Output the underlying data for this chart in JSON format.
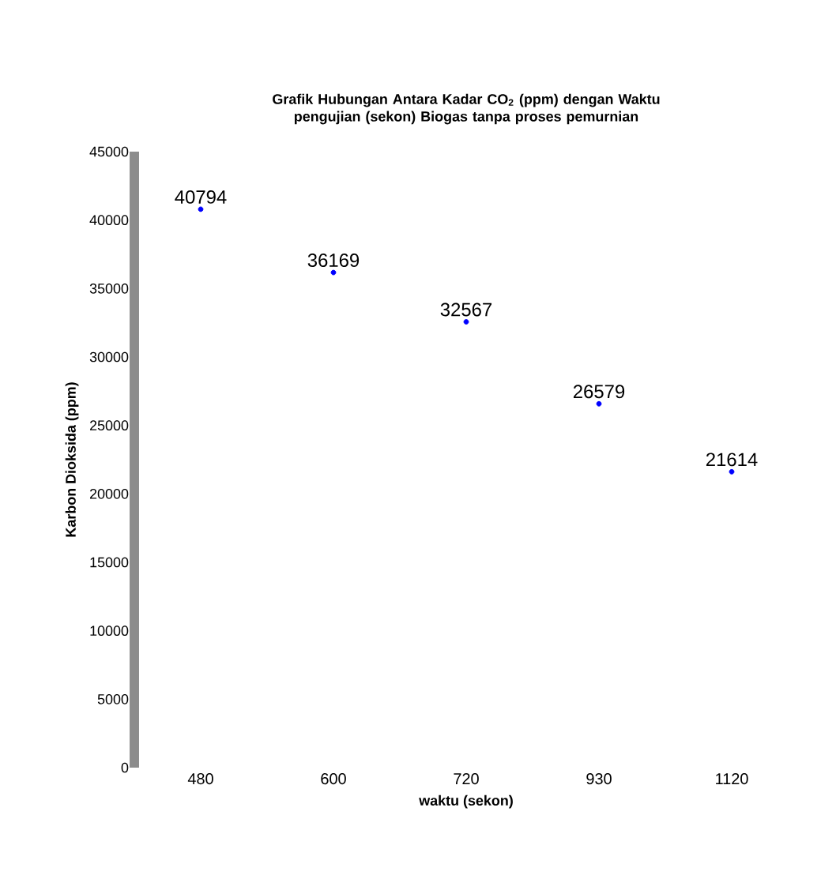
{
  "chart_data": {
    "type": "scatter",
    "title": "Grafik Hubungan Antara Kadar CO$_{2}$ (ppm) dengan  Waktu pengujian (sekon) Biogas tanpa proses pemurnian",
    "xlabel": "waktu (sekon)",
    "ylabel": "Karbon Dioksida (ppm)",
    "categories": [
      "480",
      "600",
      "720",
      "930",
      "1120"
    ],
    "values": [
      40794,
      36169,
      32567,
      26579,
      21614
    ],
    "data_labels": true,
    "marker": "circle",
    "ylim": [
      0,
      45000
    ],
    "yticks": [
      0,
      5000,
      10000,
      15000,
      20000,
      25000,
      30000,
      35000,
      40000,
      45000
    ],
    "grid": false
  }
}
